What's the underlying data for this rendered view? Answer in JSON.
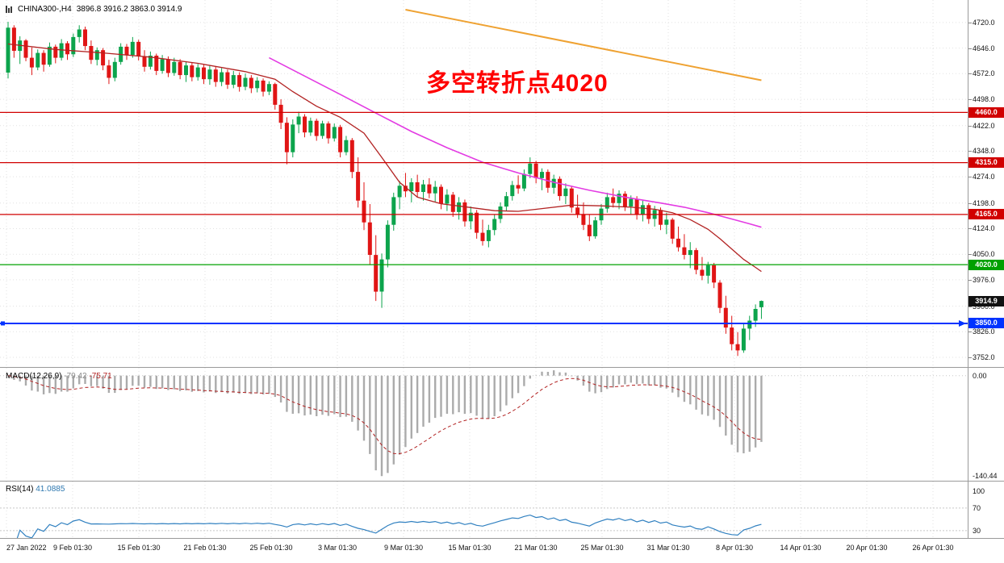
{
  "window": {
    "symbol_title": "CHINA300-,H4",
    "ohlc_text": "3896.8 3916.2 3863.0 3914.9"
  },
  "annotation": {
    "text": "多空转折点4020",
    "color": "#FF0000"
  },
  "colors": {
    "up": "#0CA44C",
    "down": "#E01515",
    "ma_fast": "#B22222",
    "ma_slow": "#E33BE3",
    "trendline": "#EFA232",
    "hline_red": "#D10000",
    "hline_green": "#00A000",
    "hline_blue": "#0033FF",
    "macd_hist": "#ABABAB",
    "macd_signal": "#B22222",
    "rsi_line": "#3080C0",
    "levels_dotted": "#C8C8C8",
    "grid": "#E2E2E2",
    "badge_last": "#111111"
  },
  "time_axis": {
    "labels": [
      "27 Jan 2022",
      "9 Feb 01:30",
      "15 Feb 01:30",
      "21 Feb 01:30",
      "25 Feb 01:30",
      "3 Mar 01:30",
      "9 Mar 01:30",
      "15 Mar 01:30",
      "21 Mar 01:30",
      "25 Mar 01:30",
      "31 Mar 01:30",
      "8 Apr 01:30",
      "14 Apr 01:30",
      "20 Apr 01:30",
      "26 Apr 01:30"
    ]
  },
  "chart_data": [
    {
      "type": "candlestick",
      "title": "CHINA300- H4 price panel",
      "ylim": [
        3724,
        4785
      ],
      "y_ticks": [
        "4720.0",
        "4646.0",
        "4572.0",
        "4498.0",
        "4422.0",
        "4348.0",
        "4274.0",
        "4198.0",
        "4124.0",
        "4050.0",
        "3976.0",
        "3900.0",
        "3826.0",
        "3752.0"
      ],
      "hlines": [
        {
          "price": 4460.0,
          "label": "4460.0",
          "type": "red"
        },
        {
          "price": 4315.0,
          "label": "4315.0",
          "type": "red"
        },
        {
          "price": 4165.0,
          "label": "4165.0",
          "type": "red"
        },
        {
          "price": 4020.0,
          "label": "4020.0",
          "type": "green"
        },
        {
          "price": 3850.0,
          "label": "3850.0",
          "type": "blue"
        }
      ],
      "last_price": {
        "value": 3914.9,
        "label": "3914.9"
      },
      "ma_fast_points": [
        [
          0,
          4658
        ],
        [
          8,
          4642
        ],
        [
          16,
          4632
        ],
        [
          24,
          4620
        ],
        [
          32,
          4602
        ],
        [
          40,
          4578
        ],
        [
          45,
          4556
        ],
        [
          48,
          4520
        ],
        [
          52,
          4478
        ],
        [
          56,
          4446
        ],
        [
          60,
          4400
        ],
        [
          63,
          4330
        ],
        [
          66,
          4258
        ],
        [
          69,
          4215
        ],
        [
          73,
          4196
        ],
        [
          78,
          4185
        ],
        [
          82,
          4176
        ],
        [
          86,
          4174
        ],
        [
          90,
          4182
        ],
        [
          95,
          4192
        ],
        [
          100,
          4190
        ],
        [
          105,
          4186
        ],
        [
          109,
          4180
        ],
        [
          112,
          4170
        ],
        [
          115,
          4150
        ],
        [
          118,
          4122
        ],
        [
          120,
          4095
        ],
        [
          122,
          4065
        ],
        [
          124,
          4035
        ],
        [
          126,
          4012
        ],
        [
          127,
          4000
        ]
      ],
      "ma_slow_points": [
        [
          44,
          4618
        ],
        [
          50,
          4565
        ],
        [
          56,
          4512
        ],
        [
          62,
          4458
        ],
        [
          68,
          4405
        ],
        [
          74,
          4358
        ],
        [
          80,
          4316
        ],
        [
          86,
          4285
        ],
        [
          92,
          4258
        ],
        [
          98,
          4235
        ],
        [
          104,
          4215
        ],
        [
          110,
          4198
        ],
        [
          114,
          4186
        ],
        [
          118,
          4170
        ],
        [
          122,
          4152
        ],
        [
          125,
          4138
        ],
        [
          127,
          4128
        ]
      ],
      "trendline": [
        [
          67,
          4757
        ],
        [
          127,
          4553
        ]
      ],
      "candles": [
        [
          4575,
          4722,
          4558,
          4705
        ],
        [
          4705,
          4712,
          4618,
          4638
        ],
        [
          4638,
          4680,
          4600,
          4668
        ],
        [
          4668,
          4672,
          4608,
          4618
        ],
        [
          4618,
          4648,
          4568,
          4590
        ],
        [
          4590,
          4642,
          4582,
          4632
        ],
        [
          4632,
          4640,
          4578,
          4598
        ],
        [
          4598,
          4662,
          4592,
          4650
        ],
        [
          4650,
          4656,
          4602,
          4618
        ],
        [
          4618,
          4672,
          4610,
          4660
        ],
        [
          4660,
          4666,
          4612,
          4628
        ],
        [
          4628,
          4688,
          4620,
          4678
        ],
        [
          4678,
          4712,
          4662,
          4700
        ],
        [
          4700,
          4708,
          4640,
          4652
        ],
        [
          4652,
          4668,
          4600,
          4612
        ],
        [
          4612,
          4648,
          4596,
          4640
        ],
        [
          4640,
          4646,
          4582,
          4596
        ],
        [
          4596,
          4612,
          4542,
          4560
        ],
        [
          4560,
          4618,
          4550,
          4606
        ],
        [
          4606,
          4660,
          4598,
          4650
        ],
        [
          4650,
          4658,
          4612,
          4626
        ],
        [
          4626,
          4678,
          4618,
          4664
        ],
        [
          4664,
          4670,
          4610,
          4622
        ],
        [
          4622,
          4640,
          4578,
          4592
        ],
        [
          4592,
          4636,
          4584,
          4624
        ],
        [
          4624,
          4630,
          4568,
          4580
        ],
        [
          4580,
          4626,
          4572,
          4614
        ],
        [
          4614,
          4622,
          4562,
          4574
        ],
        [
          4574,
          4618,
          4566,
          4606
        ],
        [
          4606,
          4614,
          4556,
          4568
        ],
        [
          4568,
          4608,
          4548,
          4596
        ],
        [
          4596,
          4604,
          4550,
          4562
        ],
        [
          4562,
          4600,
          4552,
          4590
        ],
        [
          4590,
          4598,
          4542,
          4556
        ],
        [
          4556,
          4596,
          4540,
          4584
        ],
        [
          4584,
          4592,
          4534,
          4548
        ],
        [
          4548,
          4588,
          4536,
          4576
        ],
        [
          4576,
          4584,
          4528,
          4540
        ],
        [
          4540,
          4580,
          4530,
          4568
        ],
        [
          4568,
          4576,
          4520,
          4534
        ],
        [
          4534,
          4572,
          4524,
          4560
        ],
        [
          4560,
          4568,
          4516,
          4530
        ],
        [
          4530,
          4562,
          4518,
          4552
        ],
        [
          4552,
          4558,
          4506,
          4520
        ],
        [
          4520,
          4550,
          4510,
          4542
        ],
        [
          4542,
          4546,
          4468,
          4482
        ],
        [
          4482,
          4498,
          4412,
          4430
        ],
        [
          4430,
          4446,
          4310,
          4345
        ],
        [
          4345,
          4440,
          4330,
          4425
        ],
        [
          4425,
          4462,
          4400,
          4448
        ],
        [
          4448,
          4455,
          4388,
          4402
        ],
        [
          4402,
          4445,
          4392,
          4436
        ],
        [
          4436,
          4442,
          4378,
          4392
        ],
        [
          4392,
          4436,
          4384,
          4428
        ],
        [
          4428,
          4434,
          4370,
          4385
        ],
        [
          4385,
          4428,
          4376,
          4418
        ],
        [
          4418,
          4424,
          4330,
          4345
        ],
        [
          4345,
          4392,
          4336,
          4380
        ],
        [
          4380,
          4386,
          4270,
          4288
        ],
        [
          4288,
          4330,
          4185,
          4205
        ],
        [
          4205,
          4258,
          4120,
          4142
        ],
        [
          4142,
          4195,
          4020,
          4048
        ],
        [
          4048,
          4105,
          3915,
          3942
        ],
        [
          3942,
          4052,
          3895,
          4035
        ],
        [
          4035,
          4148,
          4012,
          4135
        ],
        [
          4135,
          4228,
          4118,
          4215
        ],
        [
          4215,
          4262,
          4180,
          4248
        ],
        [
          4248,
          4285,
          4215,
          4232
        ],
        [
          4232,
          4270,
          4200,
          4258
        ],
        [
          4258,
          4280,
          4215,
          4230
        ],
        [
          4230,
          4265,
          4205,
          4252
        ],
        [
          4252,
          4270,
          4212,
          4226
        ],
        [
          4226,
          4262,
          4200,
          4245
        ],
        [
          4245,
          4252,
          4180,
          4196
        ],
        [
          4196,
          4238,
          4175,
          4222
        ],
        [
          4222,
          4230,
          4158,
          4172
        ],
        [
          4172,
          4215,
          4150,
          4200
        ],
        [
          4200,
          4208,
          4130,
          4145
        ],
        [
          4145,
          4188,
          4122,
          4170
        ],
        [
          4170,
          4178,
          4095,
          4112
        ],
        [
          4112,
          4150,
          4075,
          4088
        ],
        [
          4088,
          4135,
          4070,
          4120
        ],
        [
          4120,
          4165,
          4105,
          4152
        ],
        [
          4152,
          4200,
          4140,
          4188
        ],
        [
          4188,
          4230,
          4175,
          4218
        ],
        [
          4218,
          4262,
          4205,
          4250
        ],
        [
          4250,
          4278,
          4225,
          4240
        ],
        [
          4240,
          4295,
          4232,
          4282
        ],
        [
          4282,
          4330,
          4270,
          4312
        ],
        [
          4312,
          4320,
          4255,
          4270
        ],
        [
          4270,
          4298,
          4235,
          4288
        ],
        [
          4288,
          4295,
          4228,
          4242
        ],
        [
          4242,
          4280,
          4225,
          4268
        ],
        [
          4268,
          4275,
          4205,
          4218
        ],
        [
          4218,
          4255,
          4195,
          4240
        ],
        [
          4240,
          4248,
          4170,
          4185
        ],
        [
          4185,
          4222,
          4155,
          4165
        ],
        [
          4165,
          4200,
          4120,
          4135
        ],
        [
          4135,
          4165,
          4088,
          4102
        ],
        [
          4102,
          4158,
          4095,
          4148
        ],
        [
          4148,
          4195,
          4135,
          4182
        ],
        [
          4182,
          4228,
          4170,
          4215
        ],
        [
          4215,
          4240,
          4185,
          4198
        ],
        [
          4198,
          4235,
          4180,
          4225
        ],
        [
          4225,
          4232,
          4175,
          4188
        ],
        [
          4188,
          4220,
          4165,
          4210
        ],
        [
          4210,
          4218,
          4150,
          4165
        ],
        [
          4165,
          4205,
          4145,
          4192
        ],
        [
          4192,
          4198,
          4138,
          4152
        ],
        [
          4152,
          4190,
          4130,
          4178
        ],
        [
          4178,
          4185,
          4120,
          4135
        ],
        [
          4135,
          4170,
          4108,
          4150
        ],
        [
          4150,
          4155,
          4080,
          4095
        ],
        [
          4095,
          4130,
          4058,
          4070
        ],
        [
          4070,
          4108,
          4035,
          4048
        ],
        [
          4048,
          4085,
          4010,
          4062
        ],
        [
          4062,
          4068,
          3992,
          4005
        ],
        [
          4005,
          4042,
          3975,
          3988
        ],
        [
          3988,
          4028,
          3965,
          4018
        ],
        [
          4018,
          4025,
          3952,
          3968
        ],
        [
          3968,
          3975,
          3880,
          3895
        ],
        [
          3895,
          3930,
          3820,
          3838
        ],
        [
          3838,
          3872,
          3772,
          3790
        ],
        [
          3790,
          3825,
          3756,
          3772
        ],
        [
          3772,
          3848,
          3765,
          3835
        ],
        [
          3835,
          3872,
          3802,
          3858
        ],
        [
          3858,
          3905,
          3840,
          3892
        ],
        [
          3896.8,
          3916.2,
          3863.0,
          3914.9
        ]
      ]
    },
    {
      "type": "macd_histogram_with_signal",
      "label": "MACD(12,26,9)",
      "value_main": "-79.42",
      "value_signal": "-75.71",
      "params": [
        12,
        26,
        9
      ],
      "ylim": [
        -147,
        11
      ],
      "y_tick_top": "0.00",
      "y_tick_bottom": "-140.44",
      "derived_from": "closes of main candlestick series"
    },
    {
      "type": "rsi_line",
      "label": "RSI(14)",
      "value": "41.0885",
      "period": 14,
      "levels": [
        70,
        30
      ],
      "y_ticks": [
        "100",
        "70",
        "30"
      ],
      "ylim": [
        17,
        117
      ]
    }
  ]
}
